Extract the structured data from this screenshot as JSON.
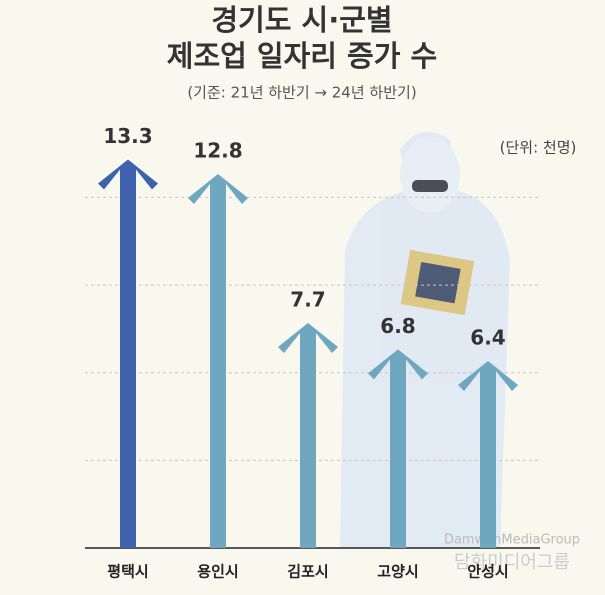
{
  "chart_data": {
    "type": "arrow-bar",
    "title": [
      "경기도 시·군별",
      "제조업 일자리 증가 수"
    ],
    "subtitle": "(기준: 21년 하반기 → 24년 하반기)",
    "unit": "(단위: 천명)",
    "categories": [
      "평택시",
      "용인시",
      "김포시",
      "고양시",
      "안성시"
    ],
    "values": [
      13.3,
      12.8,
      7.7,
      6.8,
      6.4
    ],
    "colors": [
      "#3e62ad",
      "#6fa6c0",
      "#6fa6c0",
      "#6fa6c0",
      "#6fa6c0"
    ],
    "ylim": [
      0,
      14
    ],
    "yticks": [
      3,
      6,
      9,
      12
    ],
    "grid": true,
    "watermark": [
      "DamwanMediaGroup",
      "담화미디어그룹"
    ]
  }
}
